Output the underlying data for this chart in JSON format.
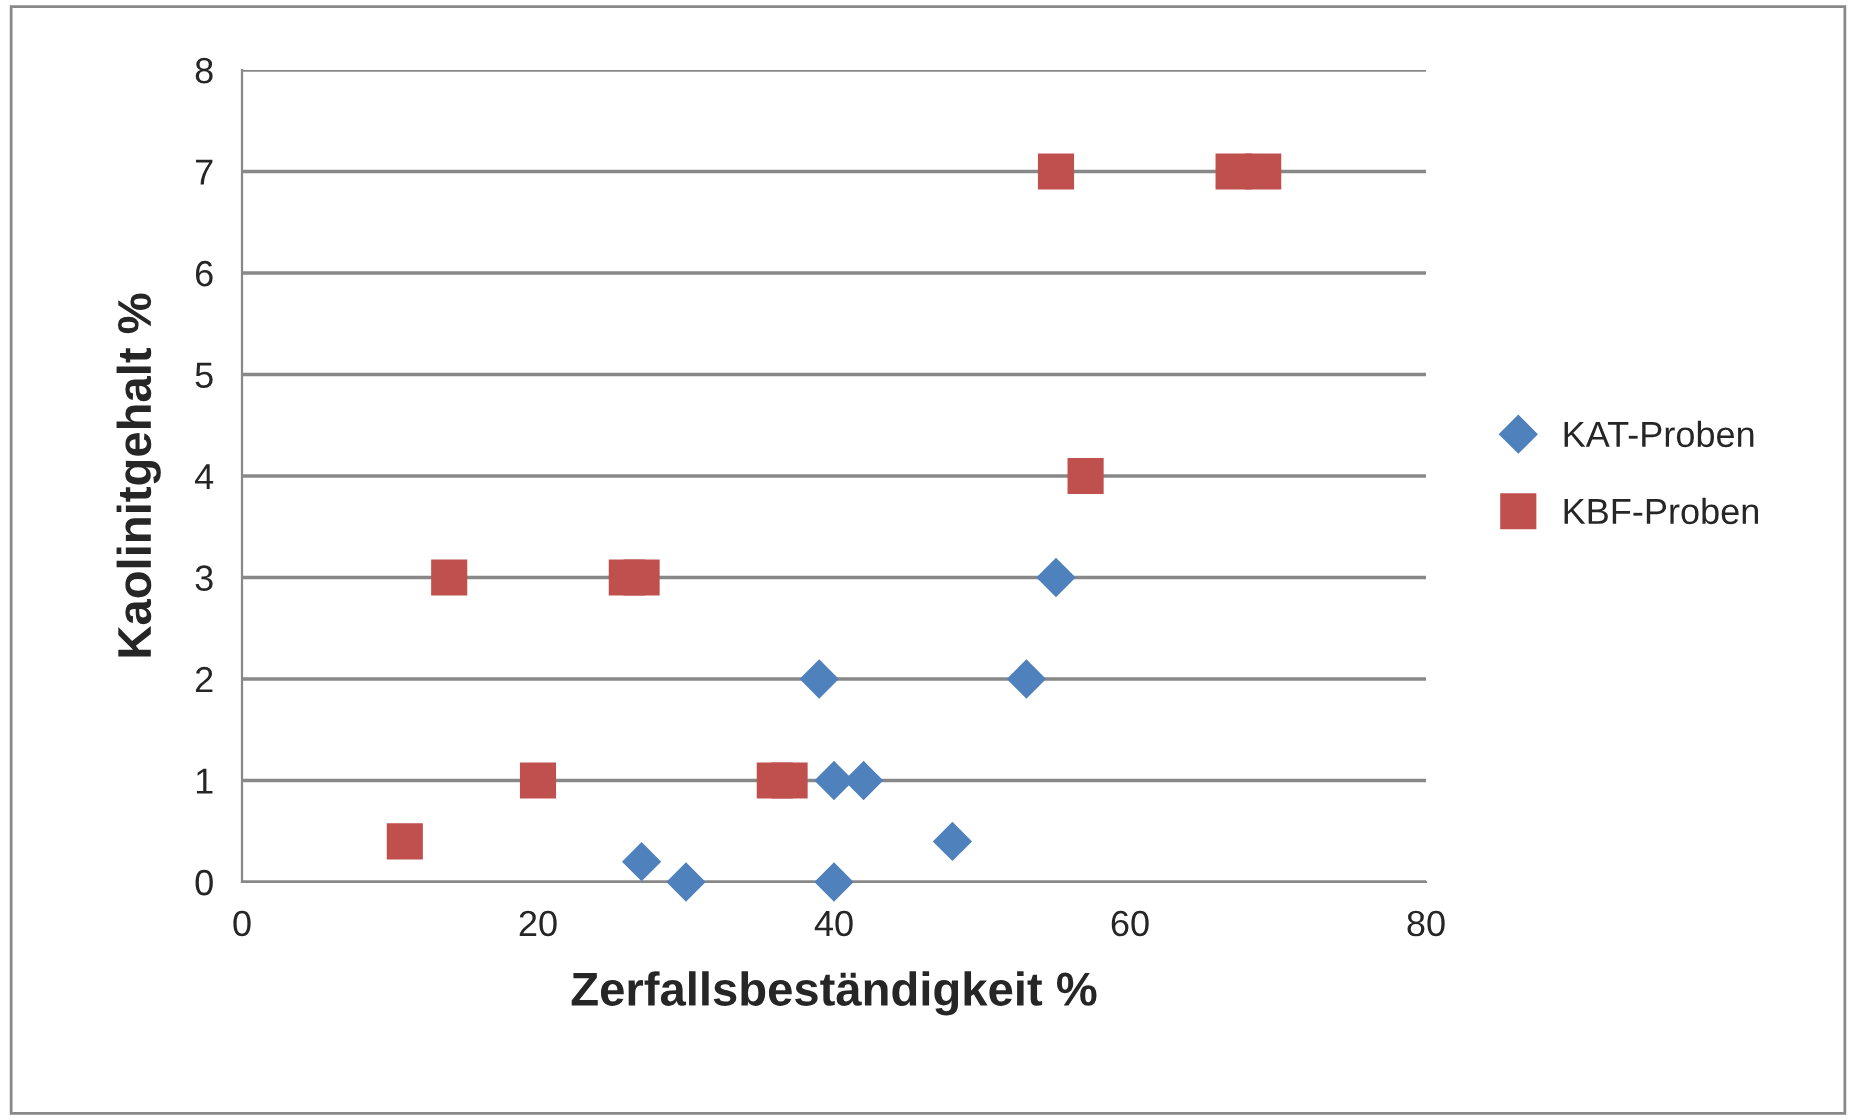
{
  "chart_data": {
    "type": "scatter",
    "xlabel": "Zerfallsbeständigkeit %",
    "ylabel": "Kaolinitgehalt %",
    "xlim": [
      0,
      80
    ],
    "xticks": [
      0,
      20,
      40,
      60,
      80
    ],
    "ylim": [
      0,
      8
    ],
    "yticks": [
      0,
      1,
      2,
      3,
      4,
      5,
      6,
      7,
      8
    ],
    "grid": "y",
    "legend": "right",
    "series": [
      {
        "name": "KAT-Proben",
        "color": "#4f81bd",
        "marker": "diamond",
        "x": [
          27,
          30,
          39,
          40,
          42,
          40,
          48,
          53,
          55
        ],
        "values": [
          0.2,
          0,
          2,
          1,
          1,
          0,
          0.4,
          2,
          3
        ]
      },
      {
        "name": "KBF-Proben",
        "color": "#c0504d",
        "marker": "square",
        "x": [
          11,
          14,
          26,
          27,
          20,
          36,
          37,
          55,
          67,
          69,
          57
        ],
        "values": [
          0.4,
          3,
          3,
          3,
          1,
          1,
          1,
          7,
          7,
          7,
          4
        ]
      }
    ]
  }
}
